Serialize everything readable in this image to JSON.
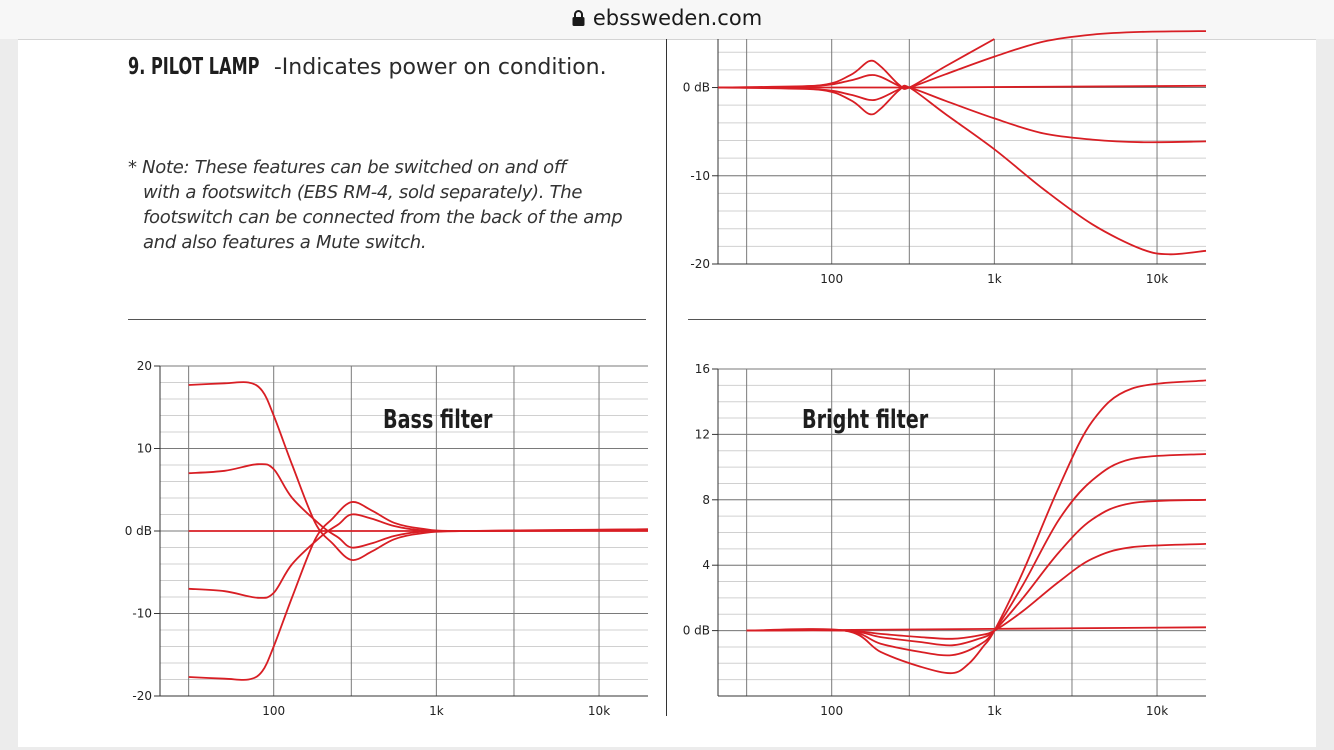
{
  "browser": {
    "url": "ebssweden.com",
    "lock_icon": "lock-icon"
  },
  "content": {
    "pilot_title": "9. PILOT LAMP",
    "pilot_text": "-Indicates power on condition.",
    "note_lines": [
      "* Note: These features can be switched on and off",
      "with a footswitch (EBS RM-4, sold separately). The",
      "footswitch can be connected from the back of the amp",
      "and also features a Mute switch."
    ]
  },
  "colors": {
    "curve": "#d81e24",
    "grid_major": "#7a7a7a",
    "grid_minor": "#d0d0d0",
    "axis_text": "#222222"
  },
  "chart_data": [
    {
      "id": "top-right-response",
      "type": "line",
      "title": "",
      "x_scale": "log",
      "xlim": [
        20,
        20000
      ],
      "ylim": [
        -20,
        5.5
      ],
      "x_tick_labels": [
        {
          "value": 100,
          "label": "100"
        },
        {
          "value": 1000,
          "label": "1k"
        },
        {
          "value": 10000,
          "label": "10k"
        }
      ],
      "y_tick_labels": [
        {
          "value": 0,
          "label": "0 dB"
        },
        {
          "value": -10,
          "label": "-10"
        },
        {
          "value": -20,
          "label": "-20"
        }
      ],
      "x_major_grid": [
        30,
        100,
        300,
        1000,
        3000,
        10000
      ],
      "y_minor_step": 2,
      "series": [
        {
          "points": [
            [
              20,
              0
            ],
            [
              80,
              0.2
            ],
            [
              130,
              1.4
            ],
            [
              170,
              3.0
            ],
            [
              200,
              2.4
            ],
            [
              260,
              0.3
            ],
            [
              300,
              0
            ],
            [
              500,
              2.4
            ],
            [
              1000,
              5.5
            ]
          ]
        },
        {
          "points": [
            [
              20,
              0
            ],
            [
              80,
              0.2
            ],
            [
              130,
              0.8
            ],
            [
              170,
              1.4
            ],
            [
              200,
              1.2
            ],
            [
              260,
              0.2
            ],
            [
              300,
              0
            ],
            [
              500,
              1.5
            ],
            [
              1000,
              3.5
            ],
            [
              2000,
              5.2
            ],
            [
              4000,
              6
            ],
            [
              8000,
              6.3
            ],
            [
              20000,
              6.4
            ]
          ]
        },
        {
          "points": [
            [
              20,
              0
            ],
            [
              300,
              0
            ],
            [
              20000,
              0.2
            ]
          ]
        },
        {
          "points": [
            [
              20,
              0
            ],
            [
              80,
              -0.2
            ],
            [
              130,
              -0.8
            ],
            [
              170,
              -1.4
            ],
            [
              200,
              -1.2
            ],
            [
              260,
              -0.2
            ],
            [
              300,
              0
            ],
            [
              500,
              -1.5
            ],
            [
              1000,
              -3.5
            ],
            [
              2000,
              -5.2
            ],
            [
              4000,
              -5.9
            ],
            [
              8000,
              -6.2
            ],
            [
              20000,
              -6.1
            ]
          ]
        },
        {
          "points": [
            [
              20,
              0
            ],
            [
              80,
              -0.2
            ],
            [
              130,
              -1.4
            ],
            [
              170,
              -3.0
            ],
            [
              200,
              -2.4
            ],
            [
              260,
              -0.3
            ],
            [
              300,
              0
            ],
            [
              500,
              -3
            ],
            [
              1000,
              -7
            ],
            [
              2000,
              -11.5
            ],
            [
              4000,
              -15.5
            ],
            [
              8000,
              -18.3
            ],
            [
              12000,
              -18.9
            ],
            [
              20000,
              -18.5
            ]
          ]
        }
      ]
    },
    {
      "id": "bass-filter",
      "type": "line",
      "title": "Bass filter",
      "x_scale": "log",
      "xlim": [
        20,
        20000
      ],
      "ylim": [
        -20,
        20
      ],
      "x_tick_labels": [
        {
          "value": 100,
          "label": "100"
        },
        {
          "value": 1000,
          "label": "1k"
        },
        {
          "value": 10000,
          "label": "10k"
        }
      ],
      "y_tick_labels": [
        {
          "value": 20,
          "label": "20"
        },
        {
          "value": 10,
          "label": "10"
        },
        {
          "value": 0,
          "label": "0 dB"
        },
        {
          "value": -10,
          "label": "-10"
        },
        {
          "value": -20,
          "label": "-20"
        }
      ],
      "x_major_grid": [
        30,
        100,
        300,
        1000,
        3000,
        10000
      ],
      "y_minor_step": 2,
      "series": [
        {
          "points": [
            [
              30,
              17.7
            ],
            [
              50,
              17.9
            ],
            [
              70,
              18
            ],
            [
              85,
              17
            ],
            [
              100,
              14
            ],
            [
              130,
              8
            ],
            [
              180,
              1
            ],
            [
              230,
              -1.5
            ],
            [
              300,
              -3.5
            ],
            [
              400,
              -2.5
            ],
            [
              550,
              -1
            ],
            [
              800,
              -0.3
            ],
            [
              1500,
              0
            ],
            [
              20000,
              0.2
            ]
          ]
        },
        {
          "points": [
            [
              30,
              7
            ],
            [
              50,
              7.3
            ],
            [
              80,
              8.1
            ],
            [
              100,
              7.5
            ],
            [
              130,
              4
            ],
            [
              200,
              0.5
            ],
            [
              250,
              -0.8
            ],
            [
              300,
              -2
            ],
            [
              400,
              -1.5
            ],
            [
              550,
              -0.6
            ],
            [
              800,
              -0.1
            ],
            [
              1500,
              0
            ],
            [
              20000,
              0.1
            ]
          ]
        },
        {
          "points": [
            [
              30,
              0
            ],
            [
              20000,
              0
            ]
          ]
        },
        {
          "points": [
            [
              30,
              -7
            ],
            [
              50,
              -7.3
            ],
            [
              80,
              -8.1
            ],
            [
              100,
              -7.5
            ],
            [
              130,
              -4
            ],
            [
              200,
              -0.5
            ],
            [
              250,
              0.8
            ],
            [
              300,
              2
            ],
            [
              400,
              1.5
            ],
            [
              550,
              0.6
            ],
            [
              800,
              0.1
            ],
            [
              1500,
              0
            ],
            [
              20000,
              0.1
            ]
          ]
        },
        {
          "points": [
            [
              30,
              -17.7
            ],
            [
              50,
              -17.9
            ],
            [
              70,
              -18
            ],
            [
              85,
              -17
            ],
            [
              100,
              -14
            ],
            [
              130,
              -8
            ],
            [
              180,
              -1
            ],
            [
              230,
              1.5
            ],
            [
              300,
              3.5
            ],
            [
              400,
              2.5
            ],
            [
              550,
              1
            ],
            [
              800,
              0.3
            ],
            [
              1500,
              0
            ],
            [
              20000,
              0.2
            ]
          ]
        }
      ]
    },
    {
      "id": "bright-filter",
      "type": "line",
      "title": "Bright filter",
      "x_scale": "log",
      "xlim": [
        20,
        20000
      ],
      "ylim": [
        -4,
        16
      ],
      "x_tick_labels": [
        {
          "value": 100,
          "label": "100"
        },
        {
          "value": 1000,
          "label": "1k"
        },
        {
          "value": 10000,
          "label": "10k"
        }
      ],
      "y_tick_labels": [
        {
          "value": 16,
          "label": "16"
        },
        {
          "value": 12,
          "label": "12"
        },
        {
          "value": 8,
          "label": "8"
        },
        {
          "value": 4,
          "label": "4"
        },
        {
          "value": 0,
          "label": "0 dB"
        }
      ],
      "x_major_grid": [
        30,
        100,
        300,
        1000,
        3000,
        10000
      ],
      "y_minor_step": 1,
      "series": [
        {
          "points": [
            [
              30,
              0
            ],
            [
              20000,
              0.2
            ]
          ]
        },
        {
          "points": [
            [
              30,
              0
            ],
            [
              120,
              0
            ],
            [
              200,
              -0.2
            ],
            [
              350,
              -0.4
            ],
            [
              550,
              -0.5
            ],
            [
              800,
              -0.3
            ],
            [
              1000,
              0
            ],
            [
              1500,
              1.2
            ],
            [
              2500,
              3
            ],
            [
              4000,
              4.4
            ],
            [
              7000,
              5.1
            ],
            [
              20000,
              5.3
            ]
          ]
        },
        {
          "points": [
            [
              30,
              0
            ],
            [
              120,
              0
            ],
            [
              200,
              -0.4
            ],
            [
              350,
              -0.7
            ],
            [
              550,
              -0.9
            ],
            [
              800,
              -0.5
            ],
            [
              1000,
              0
            ],
            [
              1500,
              2
            ],
            [
              2500,
              4.8
            ],
            [
              4000,
              6.8
            ],
            [
              7000,
              7.8
            ],
            [
              20000,
              8
            ]
          ]
        },
        {
          "points": [
            [
              30,
              0
            ],
            [
              120,
              0
            ],
            [
              200,
              -0.8
            ],
            [
              350,
              -1.3
            ],
            [
              550,
              -1.5
            ],
            [
              800,
              -0.9
            ],
            [
              1000,
              0
            ],
            [
              1500,
              2.8
            ],
            [
              2500,
              6.8
            ],
            [
              4000,
              9.2
            ],
            [
              7000,
              10.5
            ],
            [
              20000,
              10.8
            ]
          ]
        },
        {
          "points": [
            [
              30,
              0
            ],
            [
              120,
              0
            ],
            [
              200,
              -1.3
            ],
            [
              350,
              -2.2
            ],
            [
              550,
              -2.6
            ],
            [
              700,
              -2
            ],
            [
              850,
              -1
            ],
            [
              1000,
              0
            ],
            [
              1500,
              3.6
            ],
            [
              2500,
              8.8
            ],
            [
              4000,
              12.8
            ],
            [
              7000,
              14.8
            ],
            [
              20000,
              15.3
            ]
          ]
        }
      ]
    }
  ]
}
